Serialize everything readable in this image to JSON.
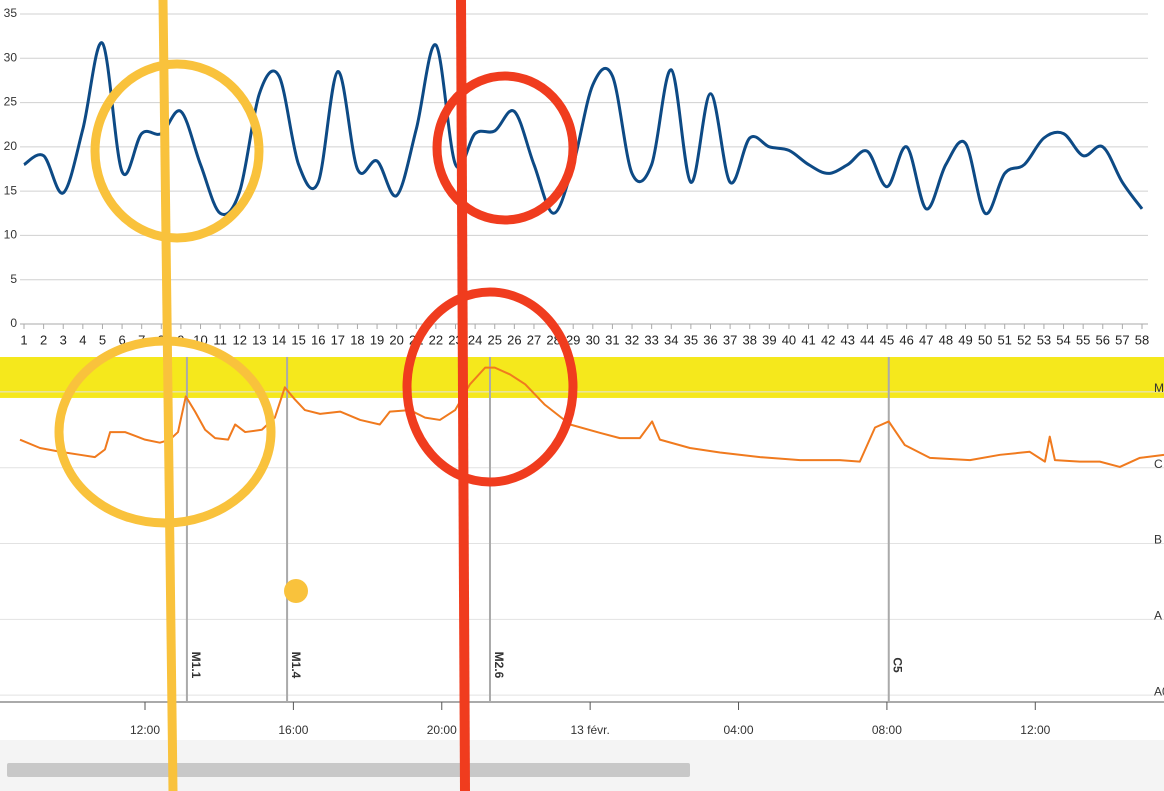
{
  "chart_data": [
    {
      "type": "line",
      "categories": [
        "1",
        "2",
        "3",
        "4",
        "5",
        "6",
        "7",
        "8",
        "9",
        "10",
        "11",
        "12",
        "13",
        "14",
        "15",
        "16",
        "17",
        "18",
        "19",
        "20",
        "21",
        "22",
        "23",
        "24",
        "25",
        "26",
        "27",
        "28",
        "29",
        "30",
        "31",
        "32",
        "33",
        "34",
        "35",
        "36",
        "37",
        "38",
        "39",
        "40",
        "41",
        "42",
        "43",
        "44",
        "45",
        "46",
        "47",
        "48",
        "49",
        "50",
        "51",
        "52",
        "53",
        "54",
        "55",
        "56",
        "57",
        "58"
      ],
      "series": [
        {
          "color": "#0d4a85",
          "values": [
            18,
            19,
            14.8,
            22,
            31.7,
            17.2,
            21.5,
            21.5,
            24,
            18,
            12.5,
            15,
            26,
            28,
            18,
            16,
            28.5,
            17.5,
            18.4,
            14.5,
            22,
            31.5,
            18,
            21.5,
            21.8,
            24,
            18,
            12.5,
            18,
            27,
            28,
            17,
            18,
            28.7,
            16,
            26,
            16,
            21,
            20,
            19.6,
            18,
            17,
            18,
            19.5,
            15.5,
            20,
            13,
            18,
            20.4,
            12.5,
            17,
            18,
            21,
            21.5,
            19,
            20,
            16,
            13
          ]
        }
      ],
      "ylim": [
        0,
        35
      ],
      "yticks": [
        0,
        5,
        10,
        15,
        20,
        25,
        30,
        35
      ],
      "grid": true
    },
    {
      "type": "line",
      "x": [
        8.63,
        9.17,
        9.71,
        10.25,
        10.65,
        10.92,
        11.06,
        11.46,
        11.73,
        12.0,
        12.4,
        12.67,
        12.89,
        13.1,
        13.35,
        13.62,
        13.89,
        14.24,
        14.43,
        14.7,
        15.15,
        15.5,
        15.77,
        16.04,
        16.31,
        16.72,
        17.26,
        17.8,
        18.33,
        18.6,
        19.14,
        19.55,
        19.95,
        20.36,
        20.76,
        21.17,
        21.43,
        21.84,
        22.25,
        22.78,
        23.46,
        24.26,
        24.8,
        25.34,
        25.67,
        25.88,
        26.69,
        27.5,
        28.58,
        29.66,
        30.73,
        31.27,
        31.68,
        32.05,
        32.48,
        33.16,
        34.24,
        35.05,
        35.85,
        36.26,
        36.39,
        36.53,
        37.2,
        37.74,
        38.28,
        38.82,
        39.47
      ],
      "series": [
        {
          "color": "#f07a1e",
          "values": [
            3.37,
            3.26,
            3.21,
            3.17,
            3.14,
            3.24,
            3.47,
            3.47,
            3.42,
            3.37,
            3.33,
            3.37,
            3.47,
            3.94,
            3.74,
            3.5,
            3.39,
            3.37,
            3.57,
            3.47,
            3.5,
            3.66,
            4.06,
            3.9,
            3.76,
            3.71,
            3.74,
            3.63,
            3.57,
            3.74,
            3.76,
            3.66,
            3.63,
            3.76,
            4.1,
            4.32,
            4.32,
            4.23,
            4.1,
            3.83,
            3.57,
            3.46,
            3.39,
            3.39,
            3.61,
            3.37,
            3.26,
            3.2,
            3.14,
            3.1,
            3.1,
            3.08,
            3.53,
            3.61,
            3.3,
            3.13,
            3.1,
            3.17,
            3.21,
            3.08,
            3.41,
            3.1,
            3.08,
            3.08,
            3.01,
            3.13,
            3.17
          ]
        }
      ],
      "xlim": [
        8.63,
        39.47
      ],
      "xticks": [
        {
          "value": 12,
          "label": "12:00"
        },
        {
          "value": 16,
          "label": "16:00"
        },
        {
          "value": 20,
          "label": "20:00"
        },
        {
          "value": 24,
          "label": "13 févr."
        },
        {
          "value": 28,
          "label": "04:00"
        },
        {
          "value": 32,
          "label": "08:00"
        },
        {
          "value": 36,
          "label": "12:00"
        }
      ],
      "ylim": [
        -0.09,
        4.46
      ],
      "yticks": [
        {
          "value": 0,
          "label": "A0"
        },
        {
          "value": 1,
          "label": "A"
        },
        {
          "value": 2,
          "label": "B"
        },
        {
          "value": 3,
          "label": "C"
        },
        {
          "value": 4,
          "label": "M"
        }
      ],
      "grid": true,
      "highlight_band": {
        "range": [
          3.92,
          4.46
        ],
        "color": "#f5e81c"
      },
      "annotations": [
        {
          "x": 13.13,
          "label": "M1.1",
          "color": "#e04848"
        },
        {
          "x": 15.83,
          "label": "M1.4",
          "color": "#e04848"
        },
        {
          "x": 21.3,
          "label": "M2.6",
          "color": "#e04848"
        },
        {
          "x": 32.05,
          "label": "C5",
          "color": "#f0a020"
        }
      ]
    }
  ]
}
